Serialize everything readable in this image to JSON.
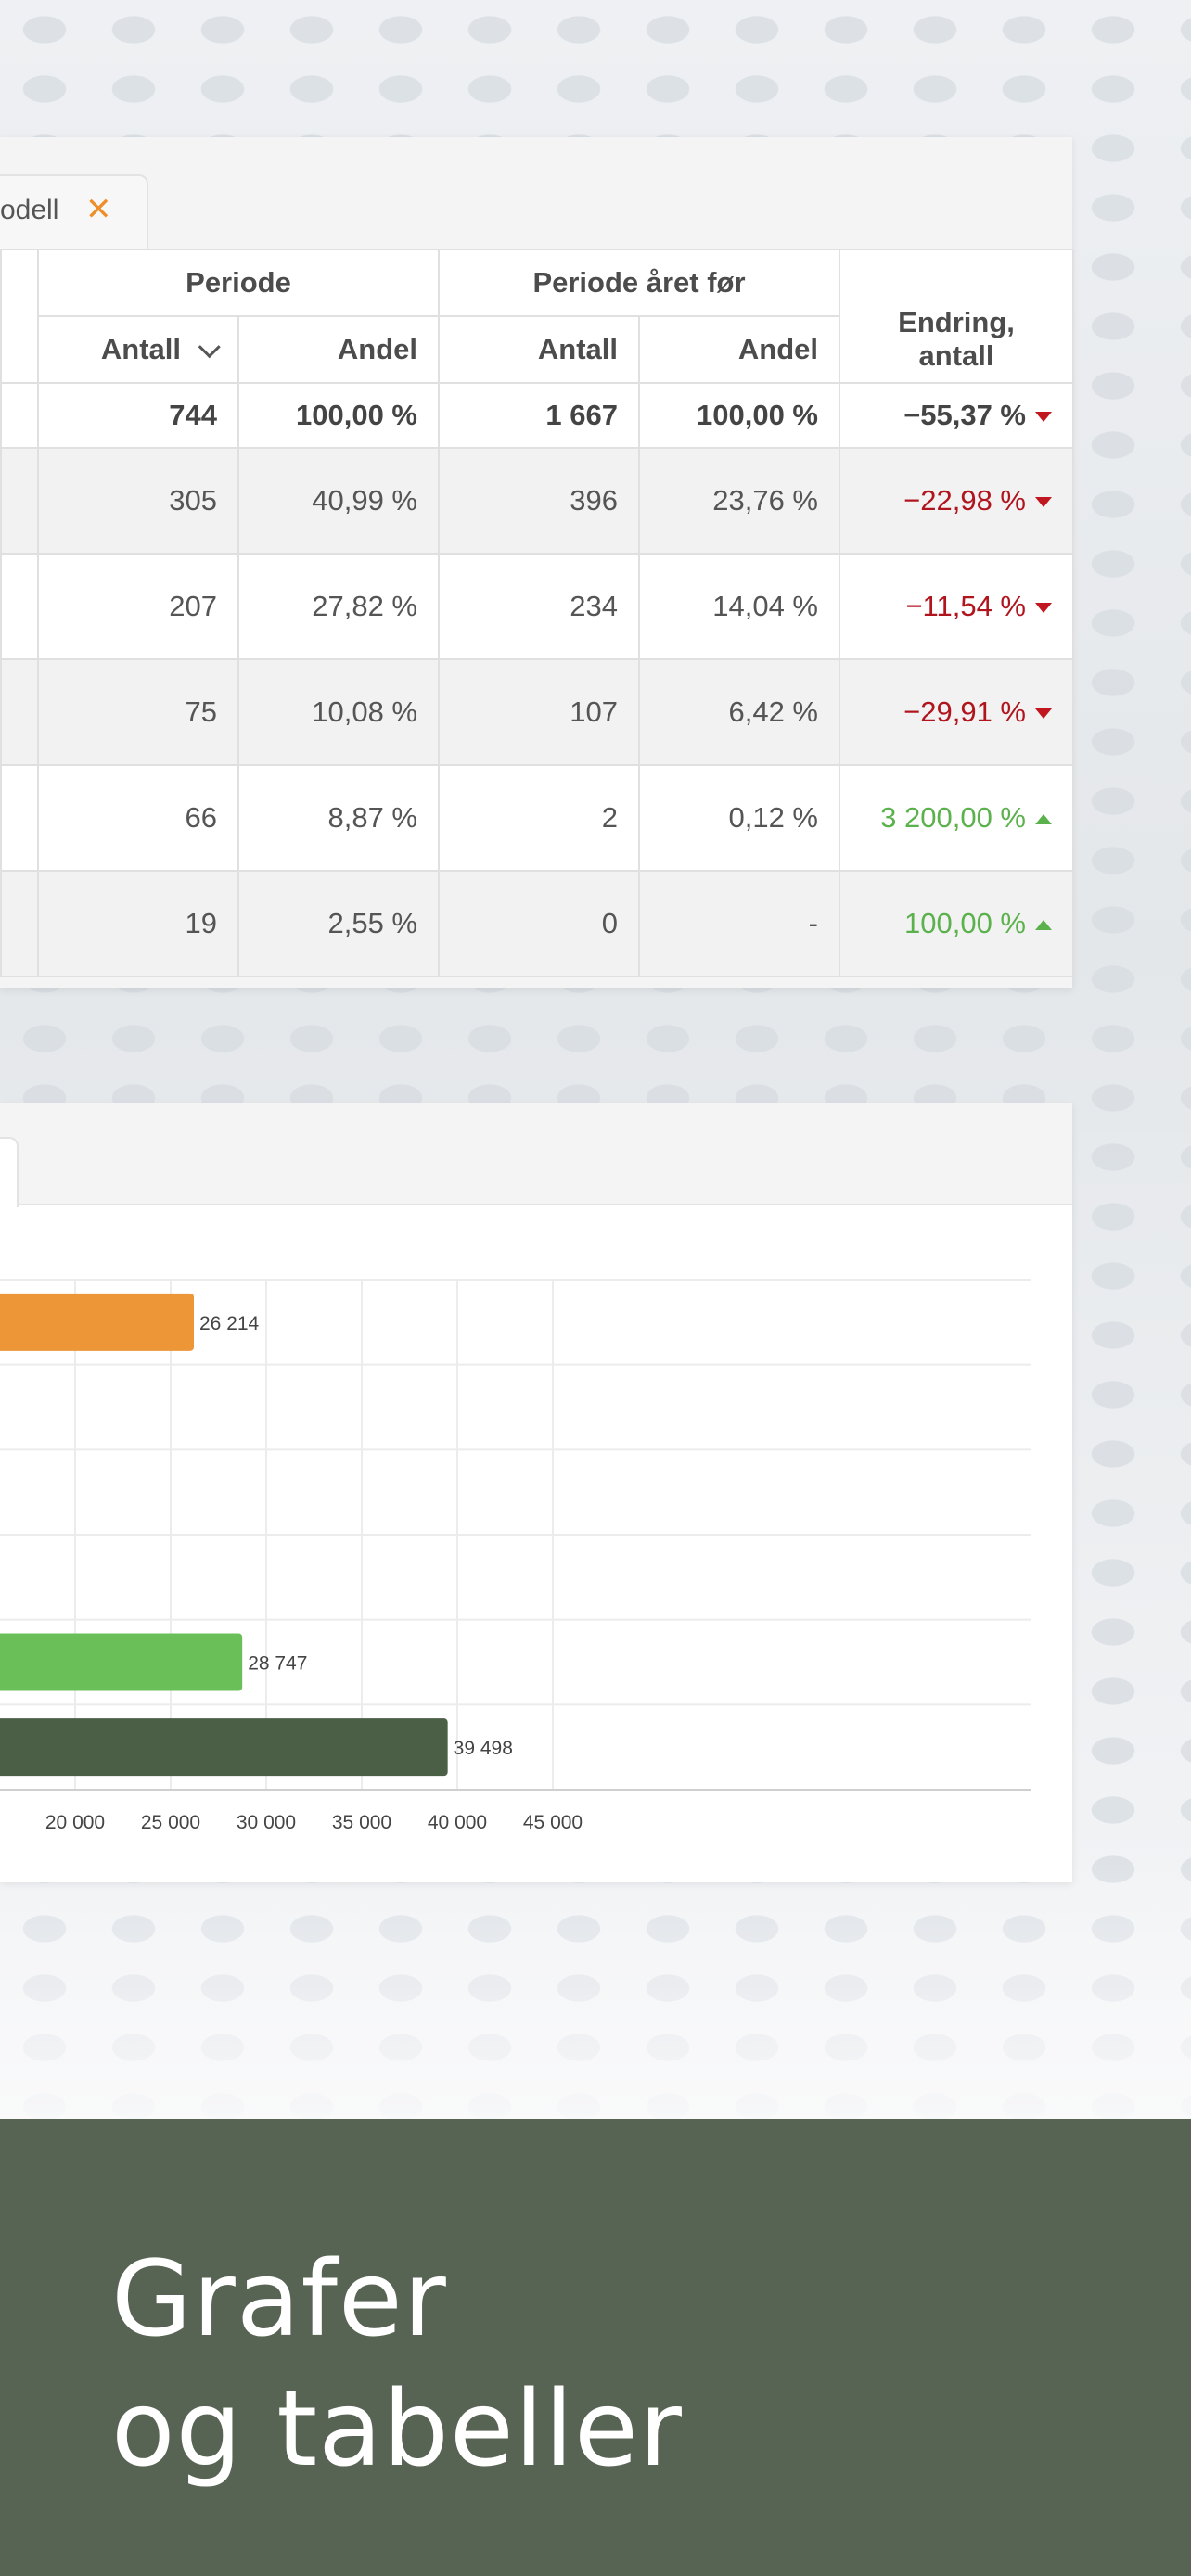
{
  "tab": {
    "label": "odell",
    "close_icon": "close-icon"
  },
  "table": {
    "groups": {
      "periode": "Periode",
      "periode_aret_for": "Periode året før",
      "endring_line1": "Endring,",
      "endring_line2": "antall"
    },
    "columns": {
      "antall": "Antall",
      "andel": "Andel"
    },
    "total": {
      "antall": "744",
      "andel": "100,00 %",
      "antall_prev": "1 667",
      "andel_prev": "100,00 %",
      "change": "−55,37 %",
      "direction": "down"
    },
    "rows": [
      {
        "antall": "305",
        "andel": "40,99 %",
        "antall_prev": "396",
        "andel_prev": "23,76 %",
        "change": "−22,98 %",
        "direction": "down"
      },
      {
        "antall": "207",
        "andel": "27,82 %",
        "antall_prev": "234",
        "andel_prev": "14,04 %",
        "change": "−11,54 %",
        "direction": "down"
      },
      {
        "antall": "75",
        "andel": "10,08 %",
        "antall_prev": "107",
        "andel_prev": "6,42 %",
        "change": "−29,91 %",
        "direction": "down"
      },
      {
        "antall": "66",
        "andel": "8,87 %",
        "antall_prev": "2",
        "andel_prev": "0,12 %",
        "change": "3 200,00 %",
        "direction": "up"
      },
      {
        "antall": "19",
        "andel": "2,55 %",
        "antall_prev": "0",
        "andel_prev": "-",
        "change": "100,00 %",
        "direction": "up"
      }
    ],
    "colors": {
      "negative": "#b0151e",
      "positive": "#5bb24d"
    }
  },
  "chart_data": {
    "type": "bar",
    "orientation": "horizontal",
    "xlim": [
      0,
      45000
    ],
    "ticks": [
      20000,
      25000,
      30000,
      35000,
      40000,
      45000
    ],
    "tick_labels": [
      "20 000",
      "25 000",
      "30 000",
      "35 000",
      "40 000",
      "45 000"
    ],
    "values": [
      26214,
      null,
      null,
      null,
      28747,
      39498
    ],
    "data_labels": [
      "26 214",
      "",
      "",
      "",
      "28 747",
      "39 498"
    ],
    "colors": [
      "#ec9637",
      "#ec9637",
      "#ec9637",
      "#ec9637",
      "#6bbf59",
      "#4a5f45"
    ],
    "grid": true
  },
  "footer": {
    "line1": "Grafer",
    "line2": "og tabeller",
    "background": "#576353"
  }
}
